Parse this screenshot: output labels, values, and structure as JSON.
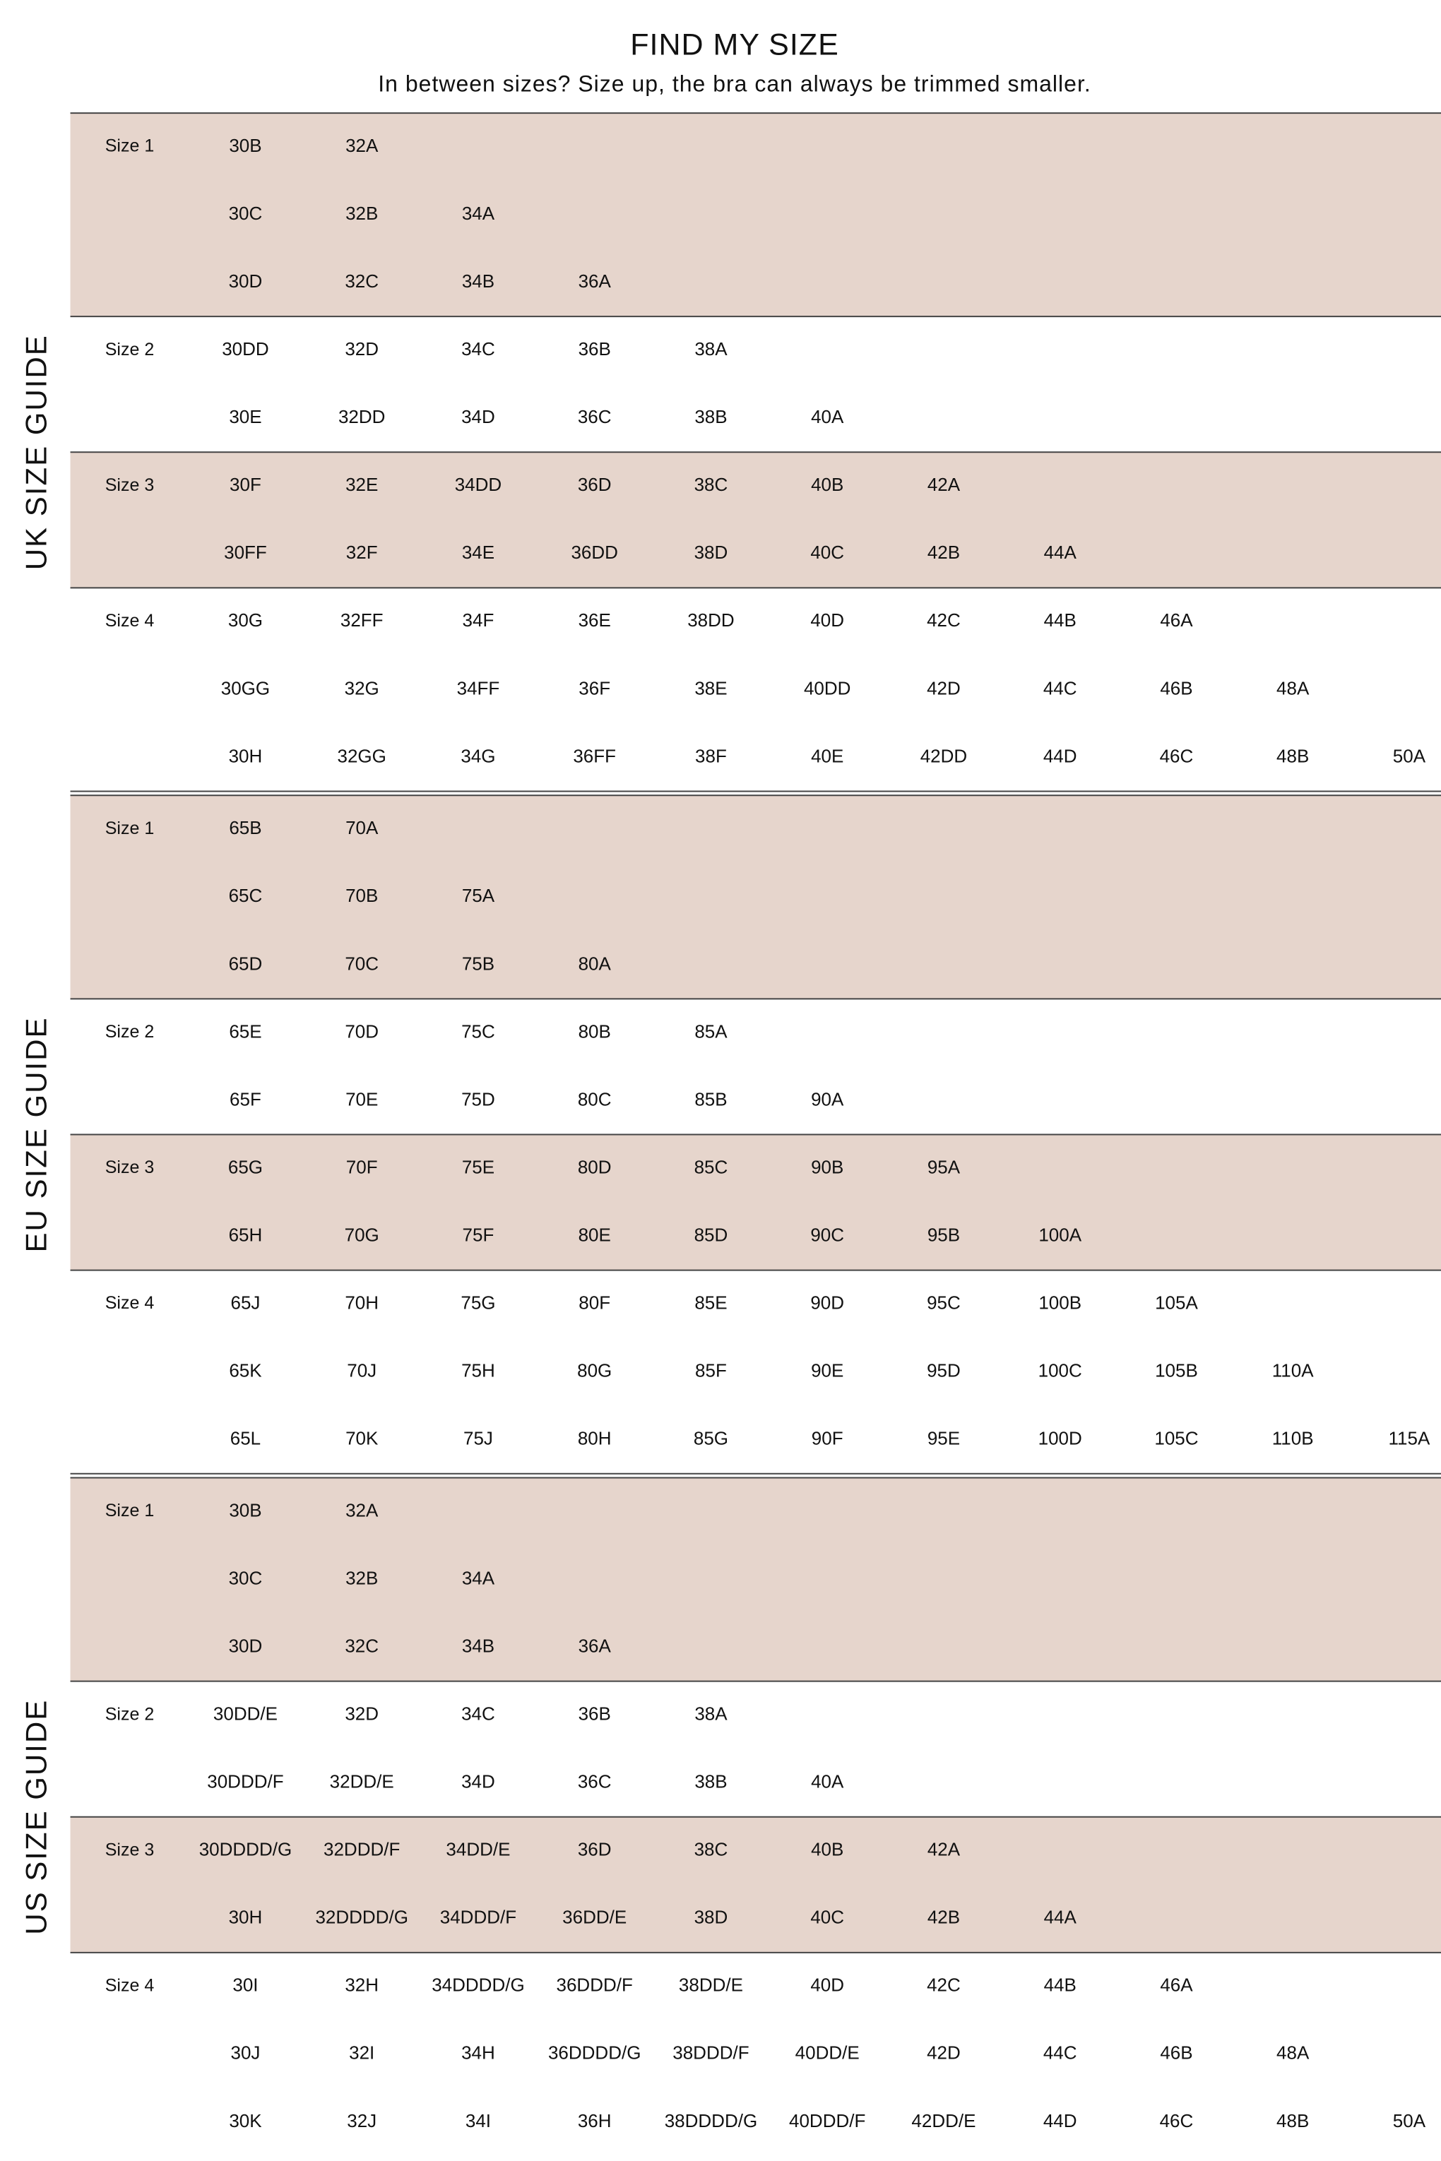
{
  "title": "FIND MY SIZE",
  "subtitle": "In between sizes? Size up, the bra can always be trimmed smaller.",
  "sections": [
    {
      "label": "UK SIZE GUIDE",
      "groups": [
        {
          "label": "Size 1",
          "rows": [
            [
              "30B",
              "32A"
            ],
            [
              "30C",
              "32B",
              "34A"
            ],
            [
              "30D",
              "32C",
              "34B",
              "36A"
            ]
          ]
        },
        {
          "label": "Size 2",
          "rows": [
            [
              "30DD",
              "32D",
              "34C",
              "36B",
              "38A"
            ],
            [
              "30E",
              "32DD",
              "34D",
              "36C",
              "38B",
              "40A"
            ]
          ]
        },
        {
          "label": "Size 3",
          "rows": [
            [
              "30F",
              "32E",
              "34DD",
              "36D",
              "38C",
              "40B",
              "42A"
            ],
            [
              "30FF",
              "32F",
              "34E",
              "36DD",
              "38D",
              "40C",
              "42B",
              "44A"
            ]
          ]
        },
        {
          "label": "Size 4",
          "rows": [
            [
              "30G",
              "32FF",
              "34F",
              "36E",
              "38DD",
              "40D",
              "42C",
              "44B",
              "46A"
            ],
            [
              "30GG",
              "32G",
              "34FF",
              "36F",
              "38E",
              "40DD",
              "42D",
              "44C",
              "46B",
              "48A"
            ],
            [
              "30H",
              "32GG",
              "34G",
              "36FF",
              "38F",
              "40E",
              "42DD",
              "44D",
              "46C",
              "48B",
              "50A"
            ]
          ]
        }
      ]
    },
    {
      "label": "EU SIZE GUIDE",
      "groups": [
        {
          "label": "Size 1",
          "rows": [
            [
              "65B",
              "70A"
            ],
            [
              "65C",
              "70B",
              "75A"
            ],
            [
              "65D",
              "70C",
              "75B",
              "80A"
            ]
          ]
        },
        {
          "label": "Size 2",
          "rows": [
            [
              "65E",
              "70D",
              "75C",
              "80B",
              "85A"
            ],
            [
              "65F",
              "70E",
              "75D",
              "80C",
              "85B",
              "90A"
            ]
          ]
        },
        {
          "label": "Size 3",
          "rows": [
            [
              "65G",
              "70F",
              "75E",
              "80D",
              "85C",
              "90B",
              "95A"
            ],
            [
              "65H",
              "70G",
              "75F",
              "80E",
              "85D",
              "90C",
              "95B",
              "100A"
            ]
          ]
        },
        {
          "label": "Size 4",
          "rows": [
            [
              "65J",
              "70H",
              "75G",
              "80F",
              "85E",
              "90D",
              "95C",
              "100B",
              "105A"
            ],
            [
              "65K",
              "70J",
              "75H",
              "80G",
              "85F",
              "90E",
              "95D",
              "100C",
              "105B",
              "110A"
            ],
            [
              "65L",
              "70K",
              "75J",
              "80H",
              "85G",
              "90F",
              "95E",
              "100D",
              "105C",
              "110B",
              "115A"
            ]
          ]
        }
      ]
    },
    {
      "label": "US SIZE GUIDE",
      "groups": [
        {
          "label": "Size 1",
          "rows": [
            [
              "30B",
              "32A"
            ],
            [
              "30C",
              "32B",
              "34A"
            ],
            [
              "30D",
              "32C",
              "34B",
              "36A"
            ]
          ]
        },
        {
          "label": "Size 2",
          "rows": [
            [
              "30DD/E",
              "32D",
              "34C",
              "36B",
              "38A"
            ],
            [
              "30DDD/F",
              "32DD/E",
              "34D",
              "36C",
              "38B",
              "40A"
            ]
          ]
        },
        {
          "label": "Size 3",
          "rows": [
            [
              "30DDDD/G",
              "32DDD/F",
              "34DD/E",
              "36D",
              "38C",
              "40B",
              "42A"
            ],
            [
              "30H",
              "32DDDD/G",
              "34DDD/F",
              "36DD/E",
              "38D",
              "40C",
              "42B",
              "44A"
            ]
          ]
        },
        {
          "label": "Size 4",
          "rows": [
            [
              "30I",
              "32H",
              "34DDDD/G",
              "36DDD/F",
              "38DD/E",
              "40D",
              "42C",
              "44B",
              "46A"
            ],
            [
              "30J",
              "32I",
              "34H",
              "36DDDD/G",
              "38DDD/F",
              "40DD/E",
              "42D",
              "44C",
              "46B",
              "48A"
            ],
            [
              "30K",
              "32J",
              "34I",
              "36H",
              "38DDDD/G",
              "40DDD/F",
              "42DD/E",
              "44D",
              "46C",
              "48B",
              "50A"
            ]
          ]
        }
      ]
    }
  ]
}
